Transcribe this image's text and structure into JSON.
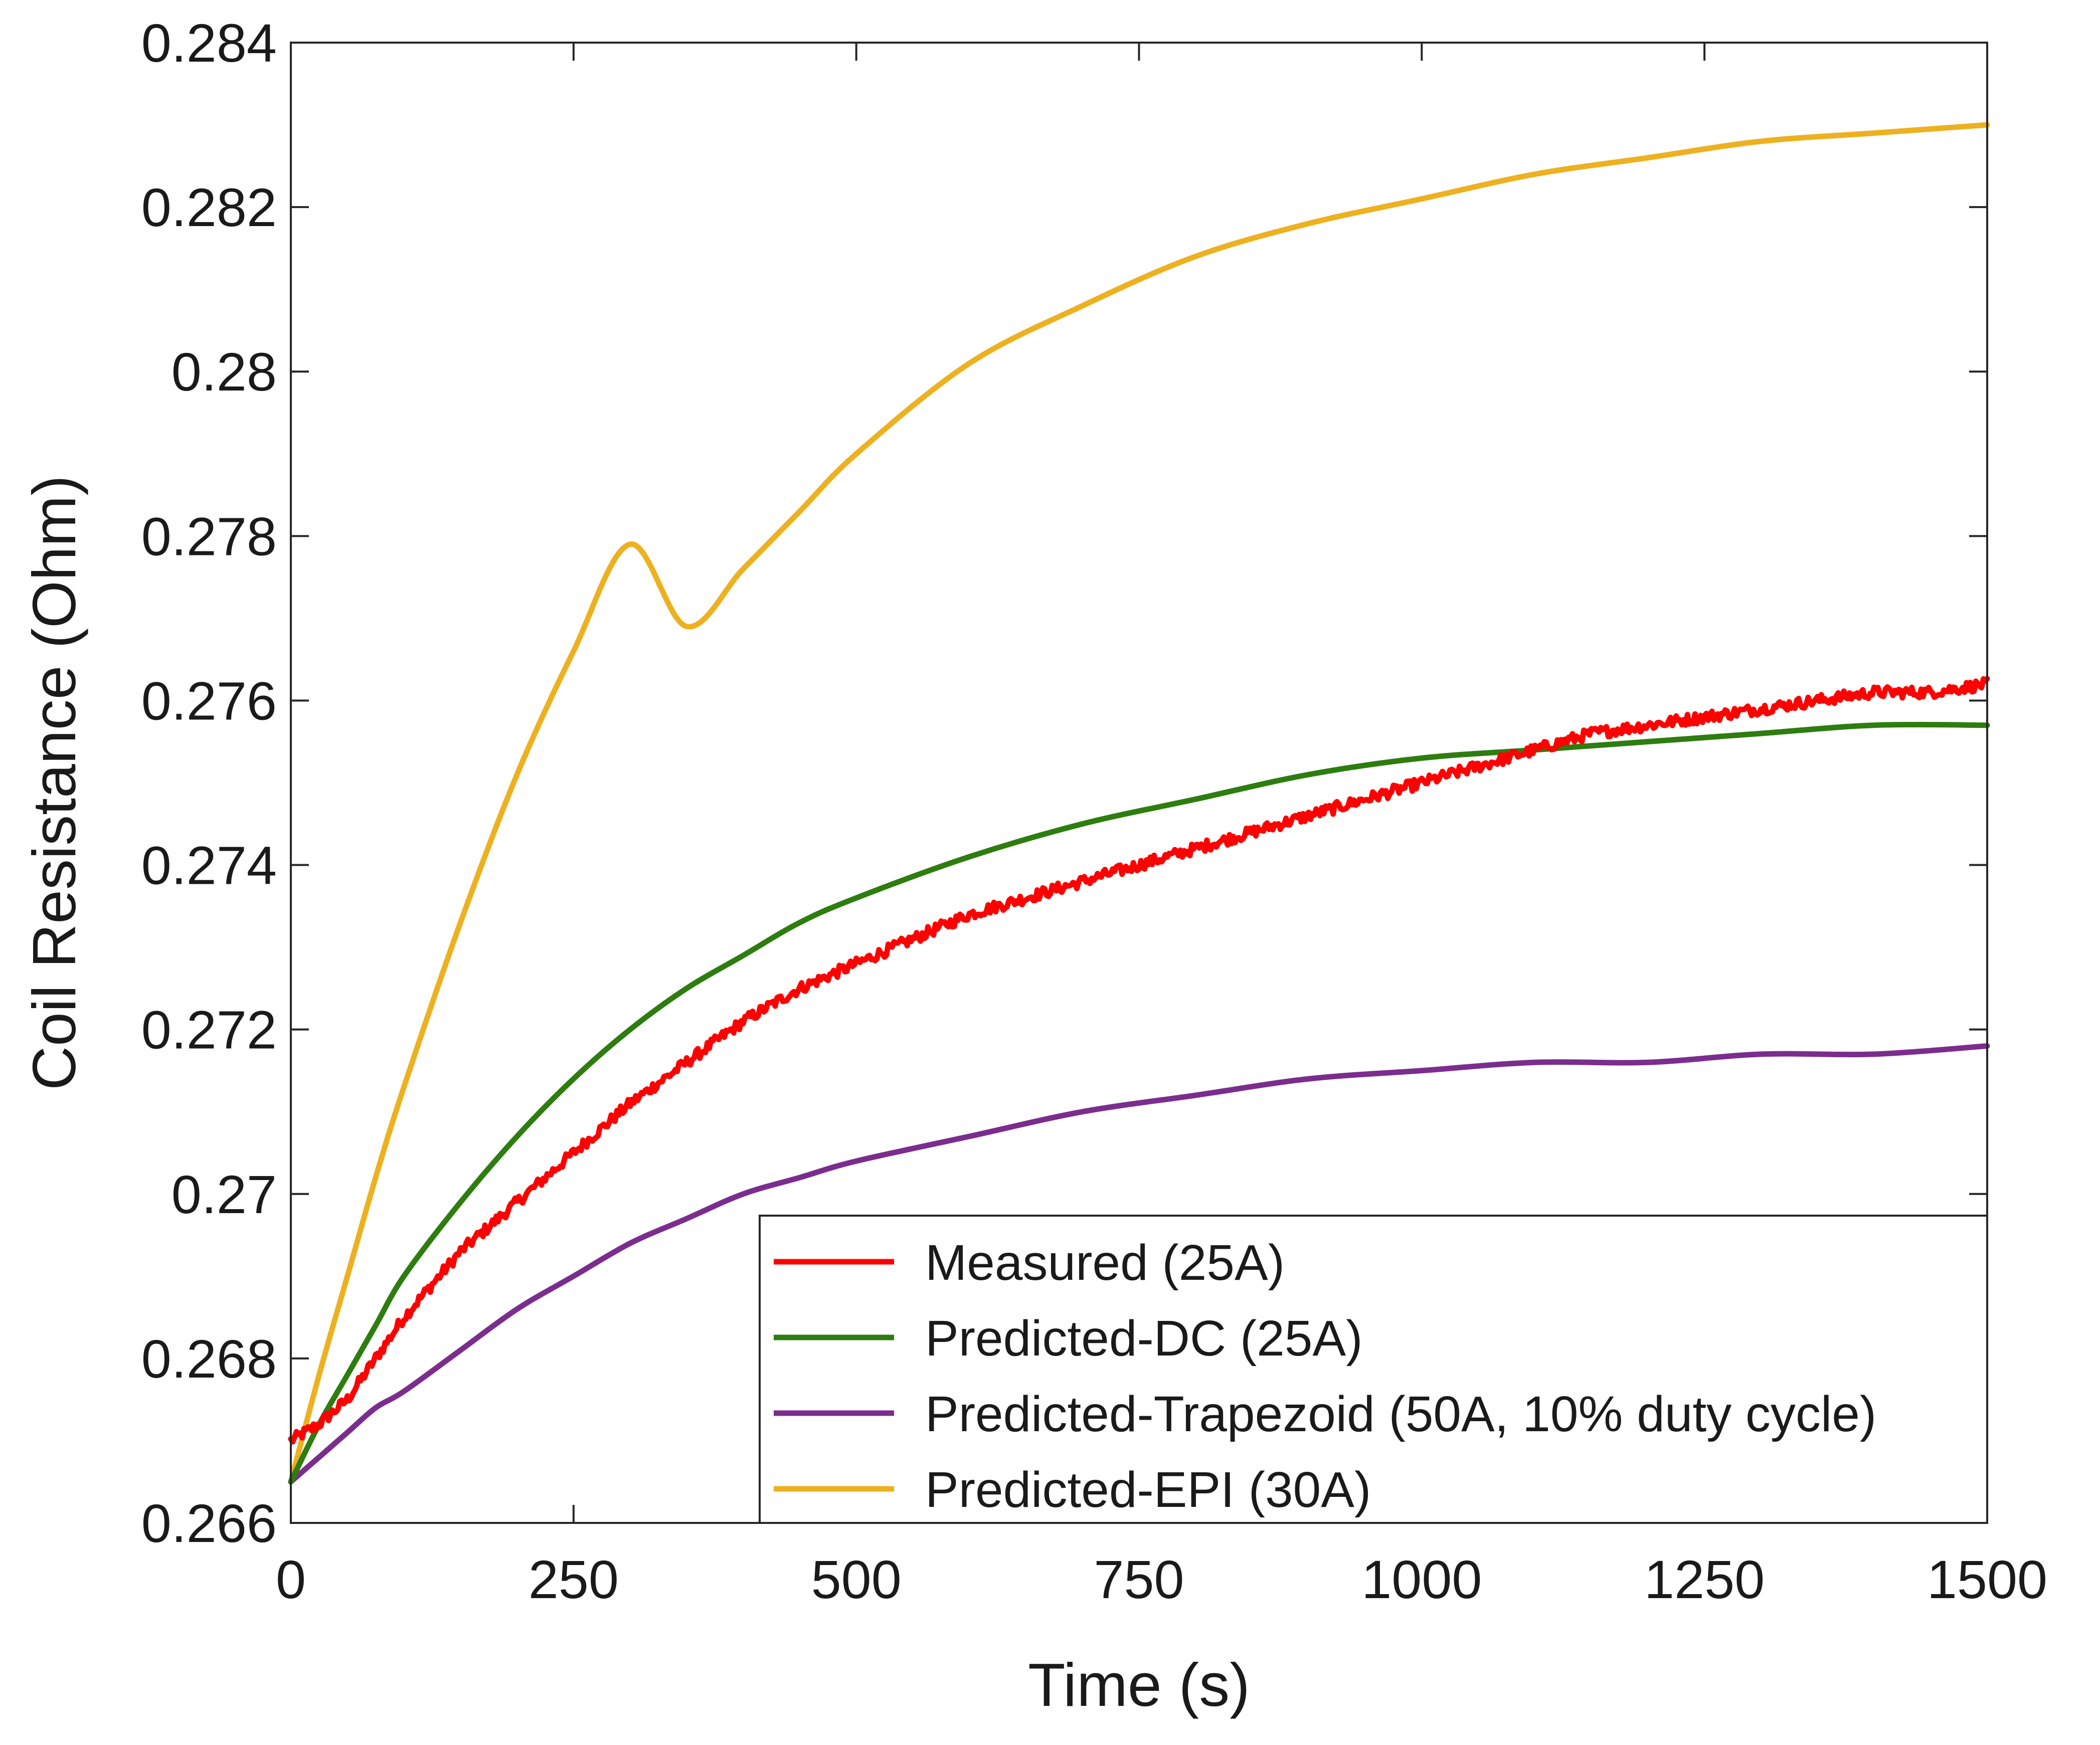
{
  "chart_data": {
    "type": "line",
    "title": "",
    "xlabel": "Time (s)",
    "ylabel": "Coil Resistance (Ohm)",
    "xlim": [
      0,
      1500
    ],
    "ylim": [
      0.266,
      0.284
    ],
    "xticks": [
      0,
      250,
      500,
      750,
      1000,
      1250,
      1500
    ],
    "xtick_labels": [
      "0",
      "250",
      "500",
      "750",
      "1000",
      "1250",
      "1500"
    ],
    "yticks": [
      0.266,
      0.268,
      0.27,
      0.272,
      0.274,
      0.276,
      0.278,
      0.28,
      0.282,
      0.284
    ],
    "ytick_labels": [
      "0.266",
      "0.268",
      "0.27",
      "0.272",
      "0.274",
      "0.276",
      "0.278",
      "0.28",
      "0.282",
      "0.284"
    ],
    "grid": false,
    "legend_position": "bottom-right",
    "series": [
      {
        "name": "Measured (25A)",
        "color": "#ff0000",
        "noisy": true,
        "x": [
          0,
          25,
          50,
          75,
          100,
          125,
          150,
          200,
          250,
          300,
          350,
          400,
          450,
          500,
          550,
          600,
          650,
          700,
          750,
          800,
          850,
          900,
          950,
          1000,
          1050,
          1100,
          1150,
          1200,
          1250,
          1300,
          1350,
          1400,
          1450,
          1500
        ],
        "y": [
          0.267,
          0.2672,
          0.2675,
          0.268,
          0.2685,
          0.2689,
          0.2693,
          0.2699,
          0.2705,
          0.2711,
          0.2716,
          0.2721,
          0.2725,
          0.2728,
          0.2731,
          0.2734,
          0.2736,
          0.2738,
          0.274,
          0.2742,
          0.2744,
          0.2746,
          0.2748,
          0.275,
          0.2752,
          0.2754,
          0.2756,
          0.2757,
          0.2758,
          0.2759,
          0.276,
          0.2761,
          0.2761,
          0.2762
        ]
      },
      {
        "name": "Predicted-DC (25A)",
        "color": "#2e7d0f",
        "x": [
          0,
          25,
          50,
          75,
          100,
          150,
          200,
          250,
          300,
          350,
          400,
          450,
          500,
          600,
          700,
          800,
          900,
          1000,
          1100,
          1200,
          1300,
          1400,
          1500
        ],
        "y": [
          0.2665,
          0.2672,
          0.2678,
          0.2684,
          0.269,
          0.2699,
          0.2707,
          0.2714,
          0.272,
          0.2725,
          0.2729,
          0.2733,
          0.2736,
          0.2741,
          0.2745,
          0.2748,
          0.2751,
          0.2753,
          0.2754,
          0.2755,
          0.2756,
          0.2757,
          0.2757
        ]
      },
      {
        "name": "Predicted-Trapezoid (50A, 10% duty cycle)",
        "color": "#7b2d8e",
        "x": [
          0,
          25,
          50,
          75,
          100,
          150,
          200,
          250,
          300,
          350,
          400,
          450,
          500,
          600,
          700,
          800,
          900,
          1000,
          1100,
          1200,
          1300,
          1400,
          1500
        ],
        "y": [
          0.2665,
          0.2668,
          0.2671,
          0.2674,
          0.2676,
          0.2681,
          0.2686,
          0.269,
          0.2694,
          0.2697,
          0.27,
          0.2702,
          0.2704,
          0.2707,
          0.271,
          0.2712,
          0.2714,
          0.2715,
          0.2716,
          0.2716,
          0.2717,
          0.2717,
          0.2718
        ]
      },
      {
        "name": "Predicted-EPI (30A)",
        "color": "#edb120",
        "x": [
          0,
          25,
          50,
          75,
          100,
          150,
          200,
          250,
          300,
          350,
          400,
          450,
          500,
          600,
          700,
          800,
          900,
          1000,
          1100,
          1200,
          1300,
          1400,
          1500
        ],
        "y": [
          0.2665,
          0.2678,
          0.269,
          0.2702,
          0.2713,
          0.2733,
          0.2751,
          0.2766,
          0.2779,
          0.2769,
          0.2776,
          0.2783,
          0.279,
          0.2801,
          0.2808,
          0.2814,
          0.2818,
          0.2821,
          0.2824,
          0.2826,
          0.2828,
          0.2829,
          0.283
        ]
      }
    ]
  }
}
